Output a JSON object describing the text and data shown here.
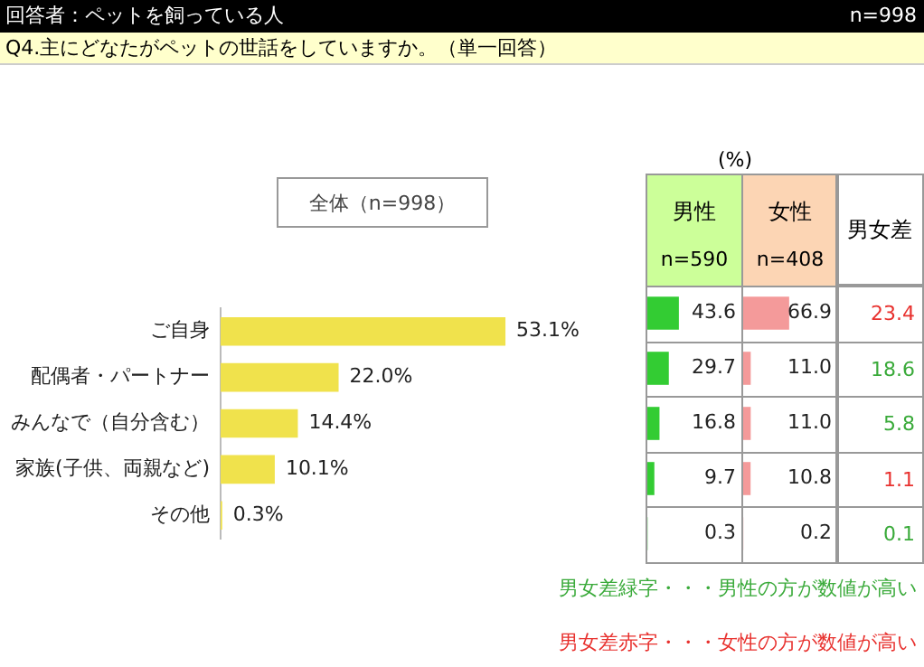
{
  "chart_data": [
    {
      "type": "bar",
      "orientation": "horizontal",
      "title": "Q4.主にどなたがペットの世話をしていますか。（単一回答）",
      "subtitle": "回答者：ペットを飼っている人",
      "legend_title": "全体（n=998）",
      "annotations": [
        "n=998"
      ],
      "categories": [
        "ご自身",
        "配偶者・パートナー",
        "みんなで（自分含む）",
        "家族(子供、両親など)",
        "その他"
      ],
      "values": [
        53.1,
        22.0,
        14.4,
        10.1,
        0.3
      ],
      "value_labels": [
        "53.1%",
        "22.0%",
        "14.4%",
        "10.1%",
        "0.3%"
      ],
      "color": "#f0e24c"
    },
    {
      "type": "bar",
      "orientation": "horizontal",
      "title": "男性",
      "subtitle": "n=590",
      "categories": [
        null,
        null,
        null,
        null,
        null
      ],
      "values": [
        43.6,
        29.7,
        16.8,
        9.7,
        0.3
      ],
      "value_labels": [
        "43.6",
        "29.7",
        "16.8",
        "9.7",
        "0.3"
      ],
      "color": "#33cc33",
      "annotations": [
        "(%)"
      ]
    },
    {
      "type": "bar",
      "orientation": "horizontal",
      "title": "女性",
      "subtitle": "n=408",
      "categories": [
        null,
        null,
        null,
        null,
        null
      ],
      "values": [
        66.9,
        11.0,
        11.0,
        10.8,
        0.2
      ],
      "value_labels": [
        "66.9",
        "11.0",
        "11.0",
        "10.8",
        "0.2"
      ],
      "color": "#f49a9a"
    },
    {
      "type": "other",
      "title": "男女差",
      "categories": [
        null,
        null,
        null,
        null,
        null
      ],
      "values": [
        23.4,
        18.6,
        5.8,
        1.1,
        0.1
      ],
      "value_labels": [
        "23.4",
        "18.6",
        "5.8",
        "1.1",
        "0.1"
      ],
      "colors": [
        "#e8312e",
        "#3aaa3a",
        "#3aaa3a",
        "#e8312e",
        "#3aaa3a"
      ],
      "annotations": [
        "男女差緑字・・・男性の方が数値が高い",
        "男女差赤字・・・女性の方が数値が高い"
      ]
    }
  ]
}
